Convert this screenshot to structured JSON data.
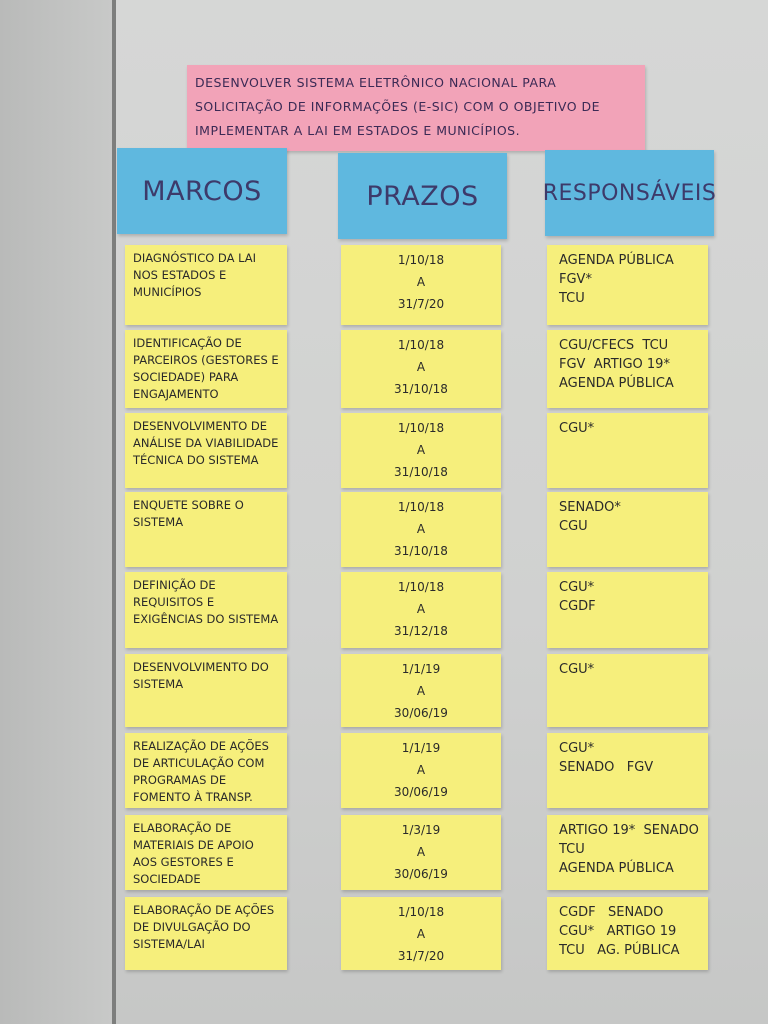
{
  "objective": "Desenvolver sistema eletrônico nacional para solicitação de informações (e-SIC) com o objetivo de implementar a LAI em estados e municípios.",
  "headers": {
    "marcos": "Marcos",
    "prazos": "Prazos",
    "responsaveis": "Responsáveis"
  },
  "colors": {
    "pink": "#f2a3b8",
    "blue": "#5fb8df",
    "yellow": "#f6ef7c",
    "star": "#d4282a"
  },
  "rows": [
    {
      "marco": "Diagnóstico da LAI nos estados e municípios",
      "inicio": "1/10/18",
      "sep": "a",
      "fim": "31/7/20",
      "resp": [
        "Agenda Pública",
        "FGV*",
        "TCU"
      ]
    },
    {
      "marco": "Identificação de parceiros (gestores e sociedade) para engajamento",
      "inicio": "1/10/18",
      "sep": "a",
      "fim": "31/10/18",
      "resp": [
        "CGU/CFECS  TCU",
        "FGV  Artigo 19*",
        "Agenda Pública"
      ]
    },
    {
      "marco": "Desenvolvimento de análise da viabilidade técnica do sistema",
      "inicio": "1/10/18",
      "sep": "a",
      "fim": "31/10/18",
      "resp": [
        "CGU*"
      ]
    },
    {
      "marco": "Enquete sobre o sistema",
      "inicio": "1/10/18",
      "sep": "a",
      "fim": "31/10/18",
      "resp": [
        "Senado*",
        "CGU"
      ]
    },
    {
      "marco": "Definição de requisitos e exigências do sistema",
      "inicio": "1/10/18",
      "sep": "a",
      "fim": "31/12/18",
      "resp": [
        "CGU*",
        "CGDF"
      ]
    },
    {
      "marco": "Desenvolvimento do sistema",
      "inicio": "1/1/19",
      "sep": "a",
      "fim": "30/06/19",
      "resp": [
        "CGU*"
      ]
    },
    {
      "marco": "Realização de ações de articulação com programas de fomento à transp.",
      "inicio": "1/1/19",
      "sep": "a",
      "fim": "30/06/19",
      "resp": [
        "CGU*",
        "Senado   FGV"
      ]
    },
    {
      "marco": "Elaboração de materiais de apoio aos gestores e sociedade",
      "inicio": "1/3/19",
      "sep": "a",
      "fim": "30/06/19",
      "resp": [
        "Artigo 19*  Senado",
        "TCU",
        "Agenda Pública"
      ]
    },
    {
      "marco": "Elaboração de ações de divulgação do sistema/LAI",
      "inicio": "1/10/18",
      "sep": "a",
      "fim": "31/7/20",
      "resp": [
        "CGDF   Senado",
        "CGU*   Artigo 19",
        "TCU   Ag. Pública"
      ]
    }
  ]
}
